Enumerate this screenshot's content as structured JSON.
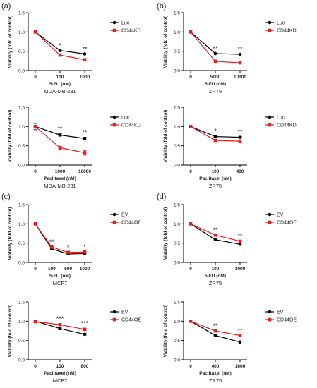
{
  "panel_letters": [
    "(a)",
    "(b)",
    "(c)",
    "(d)"
  ],
  "chart_data": [
    {
      "type": "line",
      "panel_letter": "(a)",
      "ylabel": "Viability (fold of control)",
      "xlabel": "5-FU (nM)",
      "cell_line": "MDA-MB-231",
      "ylim": [
        0,
        1.5
      ],
      "yticks": [
        "0.0",
        "0.5",
        "1.0",
        "1.5"
      ],
      "categories": [
        "0",
        "100",
        "1000"
      ],
      "series": [
        {
          "name": "Luc",
          "values": [
            1.0,
            0.52,
            0.43
          ],
          "color": "#000000"
        },
        {
          "name": "CD44KD",
          "values": [
            1.0,
            0.4,
            0.28
          ],
          "color": "#e02020"
        }
      ],
      "significance": [
        "",
        "*",
        "**"
      ],
      "legend": "right"
    },
    {
      "type": "line",
      "panel_letter": "(b)",
      "ylabel": "Viability (fold of control)",
      "xlabel": "5-FU (nM)",
      "cell_line": "ZR75",
      "ylim": [
        0,
        1.5
      ],
      "yticks": [
        "0.0",
        "0.5",
        "1.0",
        "1.5"
      ],
      "categories": [
        "0",
        "5000",
        "10000"
      ],
      "series": [
        {
          "name": "Luc",
          "values": [
            1.0,
            0.44,
            0.42
          ],
          "color": "#000000"
        },
        {
          "name": "CD44KD",
          "values": [
            1.0,
            0.24,
            0.2
          ],
          "color": "#e02020"
        }
      ],
      "significance": [
        "",
        "**",
        "**"
      ],
      "legend": "right"
    },
    {
      "type": "line",
      "ylabel": "Viability (fold of control)",
      "xlabel": "Paclitaxel (nM)",
      "cell_line": "MDA-MB-231",
      "ylim": [
        0,
        1.5
      ],
      "yticks": [
        "0.0",
        "0.5",
        "1.0",
        "1.5"
      ],
      "categories": [
        "0",
        "1000",
        "10000"
      ],
      "series": [
        {
          "name": "Luc",
          "values": [
            1.0,
            0.78,
            0.69
          ],
          "color": "#000000",
          "error": [
            0.08,
            0.03,
            0.03
          ]
        },
        {
          "name": "CD44KD",
          "values": [
            1.0,
            0.45,
            0.32
          ],
          "color": "#e02020",
          "error": [
            0.08,
            0.04,
            0.06
          ]
        }
      ],
      "significance": [
        "",
        "**",
        "**"
      ],
      "legend": "right"
    },
    {
      "type": "line",
      "ylabel": "Viability (fold of control)",
      "xlabel": "Paclitaxel (nM)",
      "cell_line": "ZR75",
      "ylim": [
        0,
        1.5
      ],
      "yticks": [
        "0.0",
        "0.5",
        "1.0",
        "1.5"
      ],
      "categories": [
        "0",
        "100",
        "400"
      ],
      "series": [
        {
          "name": "Luc",
          "values": [
            1.0,
            0.74,
            0.72
          ],
          "color": "#000000",
          "error": [
            0.03,
            0.02,
            0.02
          ]
        },
        {
          "name": "CD44KD",
          "values": [
            1.0,
            0.64,
            0.62
          ],
          "color": "#e02020",
          "error": [
            0.03,
            0.02,
            0.02
          ]
        }
      ],
      "significance": [
        "",
        "*",
        "**"
      ],
      "legend": "right"
    },
    {
      "type": "line",
      "panel_letter": "(c)",
      "ylabel": "Viability (fold of control)",
      "xlabel": "5-FU (nM)",
      "cell_line": "MCF7",
      "ylim": [
        0,
        1.5
      ],
      "yticks": [
        "0.0",
        "0.5",
        "1.0",
        "1.5"
      ],
      "categories": [
        "0",
        "100",
        "500",
        "1000"
      ],
      "series": [
        {
          "name": "EV",
          "values": [
            1.0,
            0.35,
            0.22,
            0.23
          ],
          "color": "#000000"
        },
        {
          "name": "CD44OE",
          "values": [
            1.0,
            0.4,
            0.26,
            0.27
          ],
          "color": "#e02020"
        }
      ],
      "significance": [
        "",
        "**",
        "*",
        "*"
      ],
      "legend": "right"
    },
    {
      "type": "line",
      "panel_letter": "(d)",
      "ylabel": "Viability (fold of control)",
      "xlabel": "5-FU (nM)",
      "cell_line": "ZR75",
      "ylim": [
        0,
        1.5
      ],
      "yticks": [
        "0.0",
        "0.5",
        "1.0",
        "1.5"
      ],
      "categories": [
        "0",
        "100",
        "1000"
      ],
      "series": [
        {
          "name": "EV",
          "values": [
            1.0,
            0.59,
            0.47
          ],
          "color": "#000000"
        },
        {
          "name": "CD44OE",
          "values": [
            1.0,
            0.71,
            0.55
          ],
          "color": "#e02020"
        }
      ],
      "significance": [
        "",
        "**",
        "**"
      ],
      "legend": "right"
    },
    {
      "type": "line",
      "ylabel": "Viability (fold of control)",
      "xlabel": "Paclitaxel (nM)",
      "cell_line": "MCF7",
      "ylim": [
        0,
        1.5
      ],
      "yticks": [
        "0.0",
        "0.5",
        "1.0",
        "1.5"
      ],
      "categories": [
        "0",
        "100",
        "800"
      ],
      "series": [
        {
          "name": "EV",
          "values": [
            1.0,
            0.81,
            0.66
          ],
          "color": "#000000",
          "error": [
            0.03,
            0.03,
            0.02
          ]
        },
        {
          "name": "CD44OE",
          "values": [
            0.99,
            0.91,
            0.79
          ],
          "color": "#e02020",
          "error": [
            0.03,
            0.02,
            0.02
          ]
        }
      ],
      "significance": [
        "",
        "***",
        "***"
      ],
      "legend": "right"
    },
    {
      "type": "line",
      "ylabel": "Viability (fold of control)",
      "xlabel": "Paclitaxel (nM)",
      "cell_line": "ZR75",
      "ylim": [
        0,
        1.5
      ],
      "yticks": [
        "0.0",
        "0.5",
        "1.0",
        "1.5"
      ],
      "categories": [
        "0",
        "400",
        "1600"
      ],
      "series": [
        {
          "name": "EV",
          "values": [
            1.0,
            0.63,
            0.46
          ],
          "color": "#000000"
        },
        {
          "name": "CD44OE",
          "values": [
            1.0,
            0.75,
            0.63
          ],
          "color": "#e02020"
        }
      ],
      "significance": [
        "",
        "**",
        "**"
      ],
      "legend": "right"
    }
  ]
}
